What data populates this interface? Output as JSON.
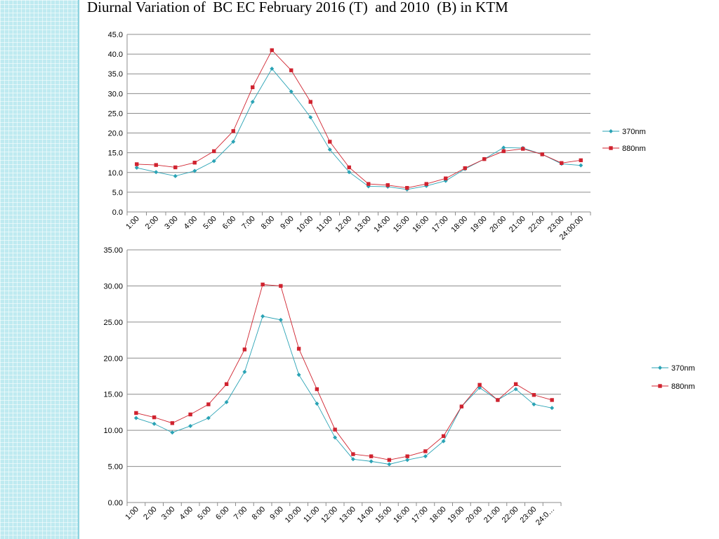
{
  "slide": {
    "title": "Diurnal Variation of  BC EC February 2016 (T)  and 2010  (B) in KTM"
  },
  "colors": {
    "series_370": "#2aa3b5",
    "series_880": "#d0232f",
    "gridline": "#8c8c8c"
  },
  "chart_data": [
    {
      "type": "line",
      "title": "",
      "xlabel": "",
      "ylabel": "",
      "ylim": [
        0,
        45
      ],
      "y_ticks": [
        "0.0",
        "5.0",
        "10.0",
        "15.0",
        "20.0",
        "25.0",
        "30.0",
        "35.0",
        "40.0",
        "45.0"
      ],
      "categories": [
        "1:00",
        "2:00",
        "3:00",
        "4:00",
        "5:00",
        "6:00",
        "7:00",
        "8:00",
        "9:00",
        "10:00",
        "11:00",
        "12:00",
        "13:00",
        "14:00",
        "15:00",
        "16:00",
        "17:00",
        "18:00",
        "19:00",
        "20:00",
        "21:00",
        "22:00",
        "23:00",
        "24:00:00"
      ],
      "grid": "horizontal",
      "legend_position": "right",
      "series": [
        {
          "name": "370nm",
          "color": "#2aa3b5",
          "marker": "diamond",
          "values": [
            11.2,
            10.1,
            9.1,
            10.4,
            12.9,
            17.8,
            27.9,
            36.3,
            30.5,
            24.0,
            15.8,
            10.1,
            6.5,
            6.4,
            5.7,
            6.6,
            7.9,
            10.9,
            13.4,
            16.3,
            16.2,
            14.6,
            12.2,
            11.8
          ]
        },
        {
          "name": "880nm",
          "color": "#d0232f",
          "marker": "square",
          "values": [
            12.1,
            11.9,
            11.3,
            12.5,
            15.4,
            20.5,
            31.6,
            41.0,
            35.9,
            27.9,
            17.8,
            11.3,
            7.1,
            6.8,
            6.1,
            7.1,
            8.5,
            11.1,
            13.4,
            15.4,
            16.0,
            14.6,
            12.4,
            13.1
          ]
        }
      ]
    },
    {
      "type": "line",
      "title": "",
      "xlabel": "",
      "ylabel": "",
      "ylim": [
        0,
        35
      ],
      "y_ticks": [
        "0.00",
        "5.00",
        "10.00",
        "15.00",
        "20.00",
        "25.00",
        "30.00",
        "35.00"
      ],
      "categories": [
        "1:00",
        "2:00",
        "3:00",
        "4:00",
        "5:00",
        "6:00",
        "7:00",
        "8:00",
        "9:00",
        "10:00",
        "11:00",
        "12:00",
        "13:00",
        "14:00",
        "15:00",
        "16:00",
        "17:00",
        "18:00",
        "19:00",
        "20:00",
        "21:00",
        "22:00",
        "23:00",
        "24:0…"
      ],
      "grid": "horizontal",
      "legend_position": "right",
      "series": [
        {
          "name": "370nm",
          "color": "#2aa3b5",
          "marker": "diamond",
          "values": [
            11.7,
            10.9,
            9.7,
            10.6,
            11.7,
            13.9,
            18.1,
            25.8,
            25.3,
            17.7,
            13.7,
            9.0,
            6.0,
            5.7,
            5.3,
            5.9,
            6.4,
            8.5,
            13.3,
            15.9,
            14.2,
            15.7,
            13.6,
            13.1
          ]
        },
        {
          "name": "880nm",
          "color": "#d0232f",
          "marker": "square",
          "values": [
            12.4,
            11.8,
            11.0,
            12.2,
            13.6,
            16.4,
            21.2,
            30.2,
            30.0,
            21.3,
            15.7,
            10.1,
            6.7,
            6.4,
            5.9,
            6.4,
            7.1,
            9.2,
            13.3,
            16.3,
            14.2,
            16.4,
            14.9,
            14.2
          ]
        }
      ]
    }
  ]
}
